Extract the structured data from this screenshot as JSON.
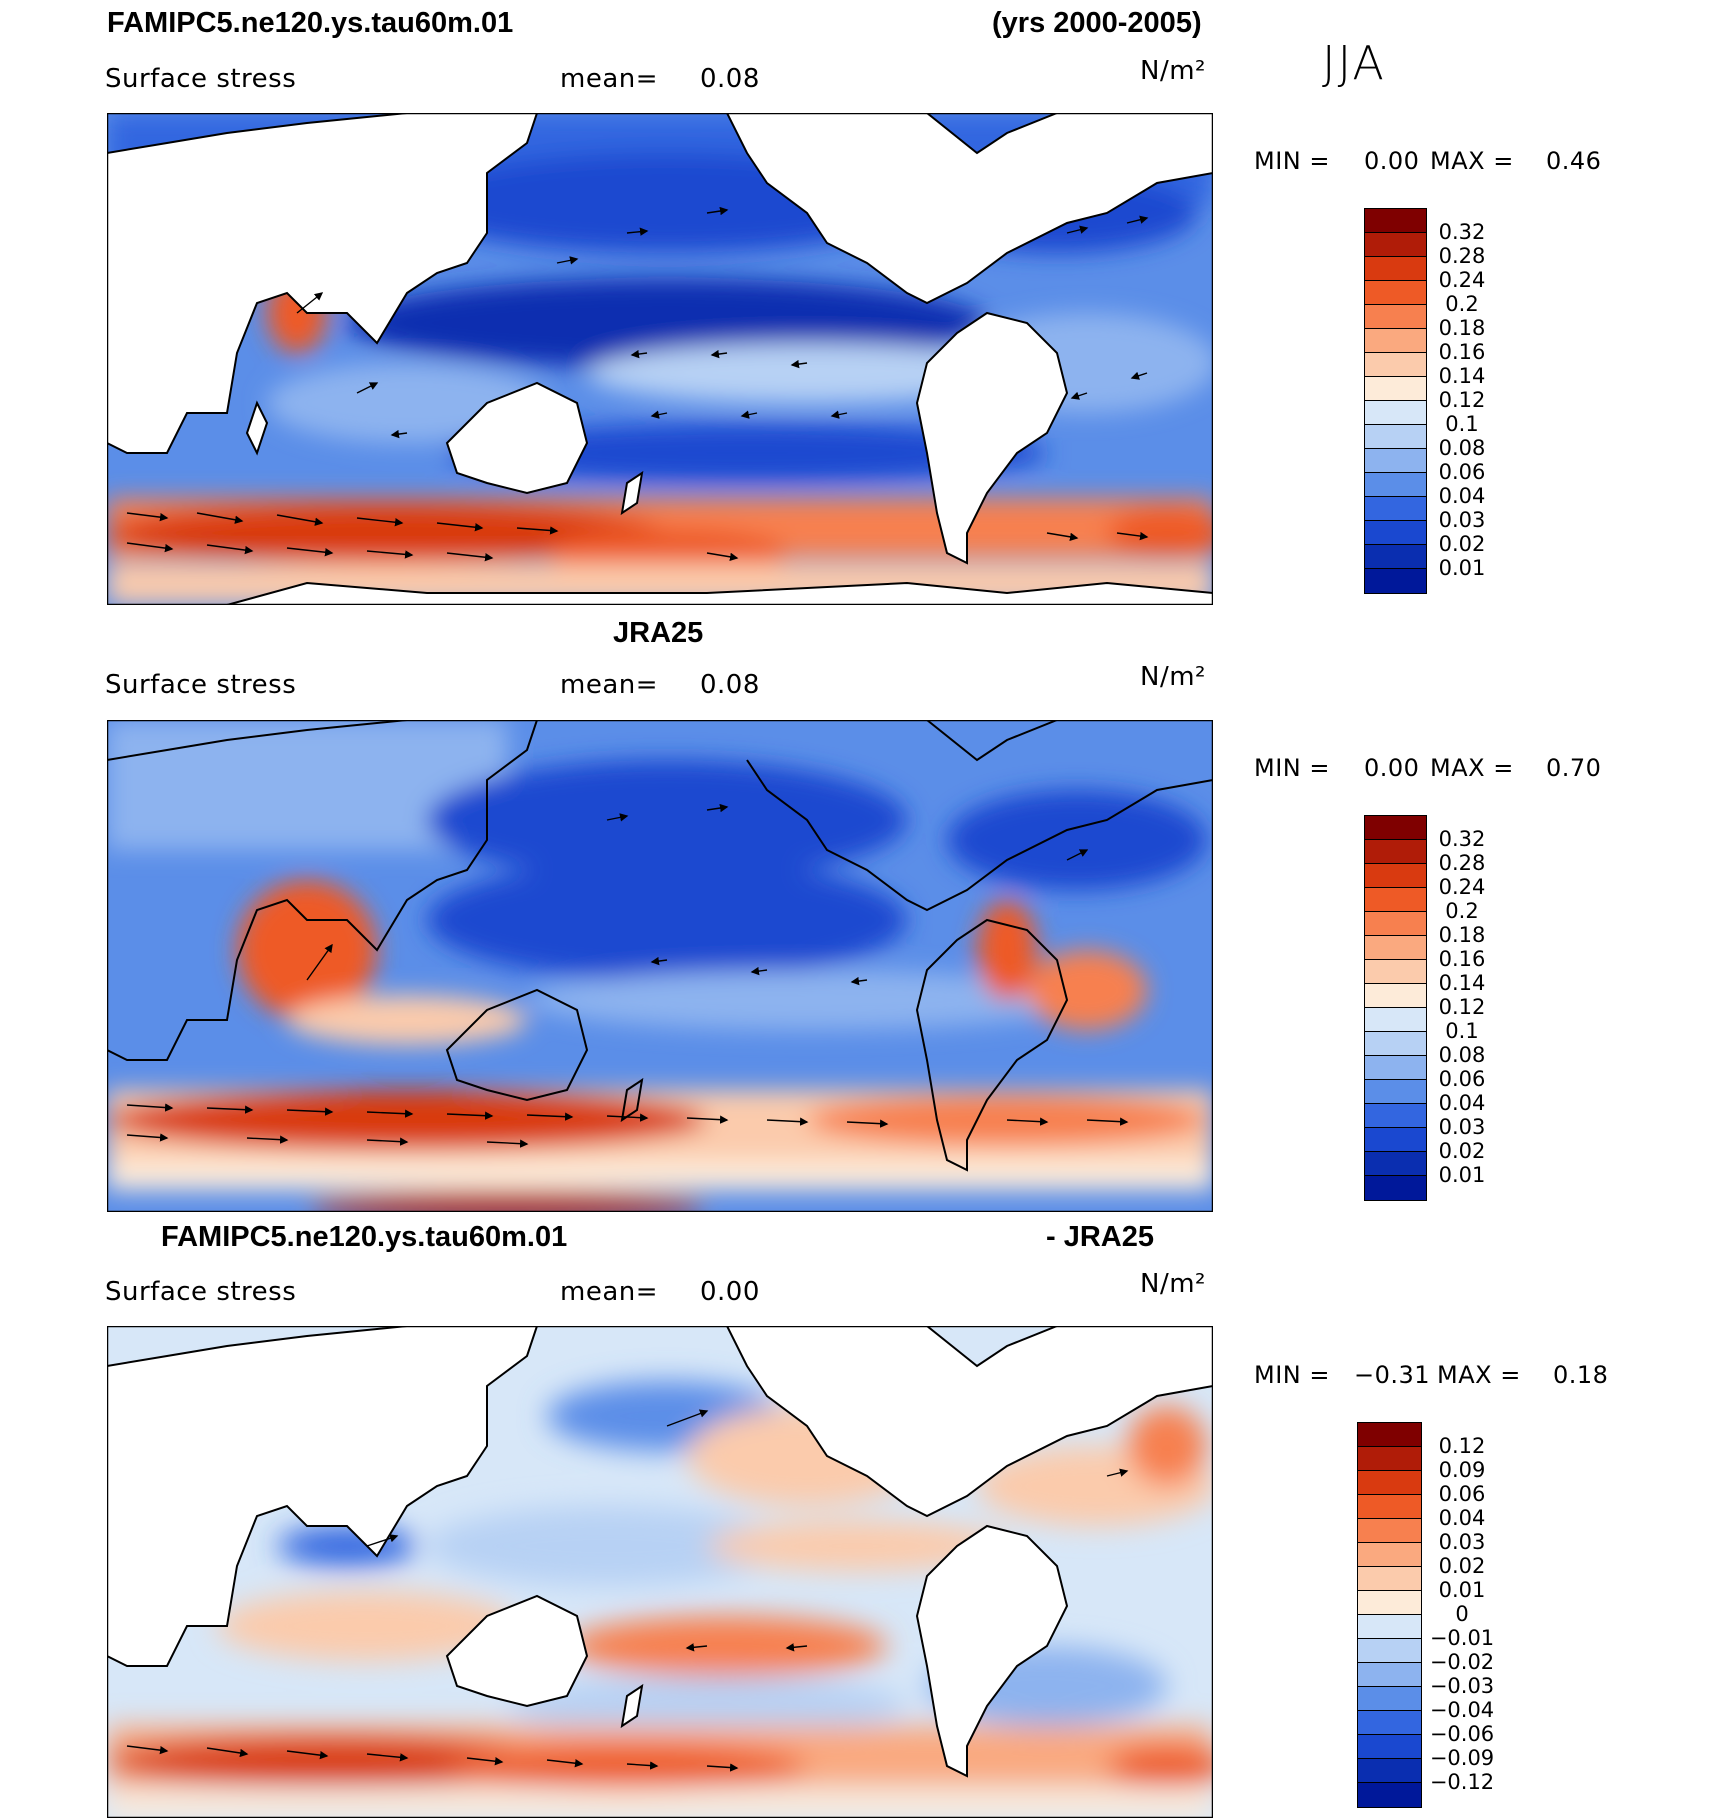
{
  "page": {
    "model_title": "FAMIPC5.ne120.ys.tau60m.01",
    "years": "(yrs 2000-2005)",
    "season": "JJA"
  },
  "panels": [
    {
      "id": "model",
      "title": "",
      "variable": "Surface stress",
      "mean_label": "mean=",
      "mean_value": "0.08",
      "units": "N/m²",
      "min_label": "MIN =",
      "min_value": "0.00",
      "max_label": "MAX =",
      "max_value": "0.46"
    },
    {
      "id": "obs",
      "title": "JRA25",
      "variable": "Surface stress",
      "mean_label": "mean=",
      "mean_value": "0.08",
      "units": "N/m²",
      "min_label": "MIN =",
      "min_value": "0.00",
      "max_label": "MAX =",
      "max_value": "0.70"
    },
    {
      "id": "diff",
      "title_left": "FAMIPC5.ne120.ys.tau60m.01",
      "title_right": "- JRA25",
      "variable": "Surface stress",
      "mean_label": "mean=",
      "mean_value": "0.00",
      "units": "N/m²",
      "min_label": "MIN =",
      "min_value": "−0.31",
      "max_label": "MAX =",
      "max_value": "0.18"
    }
  ],
  "colorbars": {
    "magnitude": {
      "labels": [
        "0.32",
        "0.28",
        "0.24",
        "0.2",
        "0.18",
        "0.16",
        "0.14",
        "0.12",
        "0.1",
        "0.08",
        "0.06",
        "0.04",
        "0.03",
        "0.02",
        "0.01"
      ],
      "colors": [
        "#7f0000",
        "#b01c08",
        "#d93a10",
        "#ee5a26",
        "#f7804f",
        "#faa97f",
        "#fbcbac",
        "#fdebd9",
        "#d7e7f8",
        "#b7d1f4",
        "#8db3ef",
        "#5b8ee8",
        "#3366e0",
        "#1a48d0",
        "#0a2eb0",
        "#00189a"
      ]
    },
    "difference": {
      "labels": [
        "0.12",
        "0.09",
        "0.06",
        "0.04",
        "0.03",
        "0.02",
        "0.01",
        "0",
        "−0.01",
        "−0.02",
        "−0.03",
        "−0.04",
        "−0.06",
        "−0.09",
        "−0.12"
      ],
      "colors": [
        "#7f0000",
        "#b01c08",
        "#d93a10",
        "#ee5a26",
        "#f7804f",
        "#faa97f",
        "#fbcbac",
        "#fdebd9",
        "#d7e7f8",
        "#b7d1f4",
        "#8db3ef",
        "#5b8ee8",
        "#3366e0",
        "#1a48d0",
        "#0a2eb0",
        "#00189a"
      ]
    }
  }
}
